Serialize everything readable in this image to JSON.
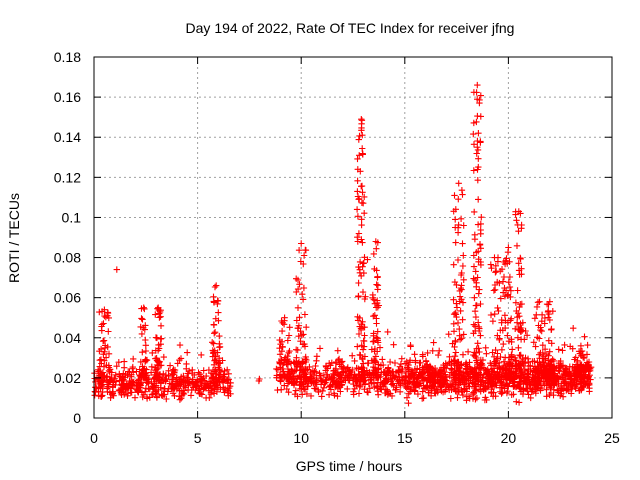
{
  "chart_data": {
    "type": "scatter",
    "title": "Day 194 of 2022, Rate Of TEC Index for receiver jfng",
    "xlabel": "GPS time / hours",
    "ylabel": "ROTI / TECUs",
    "xlim": [
      0,
      25
    ],
    "ylim": [
      0,
      0.18
    ],
    "x_ticks": [
      0,
      5,
      10,
      15,
      20,
      25
    ],
    "y_ticks": [
      0,
      0.02,
      0.04,
      0.06,
      0.08,
      0.1,
      0.12,
      0.14,
      0.16,
      0.18
    ],
    "grid": true,
    "marker": "+",
    "marker_color": "#ff0000",
    "series": [
      {
        "name": "ROTI",
        "segments": [
          {
            "x_start": 0.0,
            "x_end": 6.6,
            "base": 0.017,
            "spread": 0.01,
            "density": 70
          },
          {
            "x_start": 7.8,
            "x_end": 8.0,
            "base": 0.017,
            "spread": 0.004,
            "density": 8
          },
          {
            "x_start": 8.8,
            "x_end": 11.8,
            "base": 0.02,
            "spread": 0.012,
            "density": 70
          },
          {
            "x_start": 11.8,
            "x_end": 15.0,
            "base": 0.02,
            "spread": 0.012,
            "density": 70
          },
          {
            "x_start": 15.0,
            "x_end": 24.0,
            "base": 0.02,
            "spread": 0.014,
            "density": 110
          }
        ],
        "bursts": [
          {
            "x": 0.5,
            "peak": 0.054,
            "width": 0.25
          },
          {
            "x": 2.4,
            "peak": 0.055,
            "width": 0.15
          },
          {
            "x": 3.1,
            "peak": 0.055,
            "width": 0.15
          },
          {
            "x": 5.9,
            "peak": 0.066,
            "width": 0.2
          },
          {
            "x": 9.2,
            "peak": 0.05,
            "width": 0.25
          },
          {
            "x": 10.0,
            "peak": 0.087,
            "width": 0.25
          },
          {
            "x": 12.9,
            "peak": 0.149,
            "width": 0.2
          },
          {
            "x": 13.6,
            "peak": 0.088,
            "width": 0.15
          },
          {
            "x": 17.6,
            "peak": 0.117,
            "width": 0.25
          },
          {
            "x": 18.5,
            "peak": 0.166,
            "width": 0.2
          },
          {
            "x": 19.5,
            "peak": 0.08,
            "width": 0.35
          },
          {
            "x": 20.0,
            "peak": 0.085,
            "width": 0.2
          },
          {
            "x": 20.5,
            "peak": 0.103,
            "width": 0.2
          },
          {
            "x": 21.5,
            "peak": 0.058,
            "width": 0.3
          },
          {
            "x": 22.0,
            "peak": 0.058,
            "width": 0.2
          },
          {
            "x": 23.5,
            "peak": 0.036,
            "width": 0.3
          }
        ],
        "outliers": [
          {
            "x": 1.1,
            "y": 0.074
          },
          {
            "x": 12.7,
            "y": 0.104
          },
          {
            "x": 13.2,
            "y": 0.079
          },
          {
            "x": 18.6,
            "y": 0.157
          },
          {
            "x": 18.55,
            "y": 0.142
          },
          {
            "x": 18.5,
            "y": 0.135
          },
          {
            "x": 17.4,
            "y": 0.111
          },
          {
            "x": 12.85,
            "y": 0.123
          },
          {
            "x": 12.8,
            "y": 0.131
          },
          {
            "x": 12.95,
            "y": 0.141
          }
        ]
      }
    ]
  }
}
